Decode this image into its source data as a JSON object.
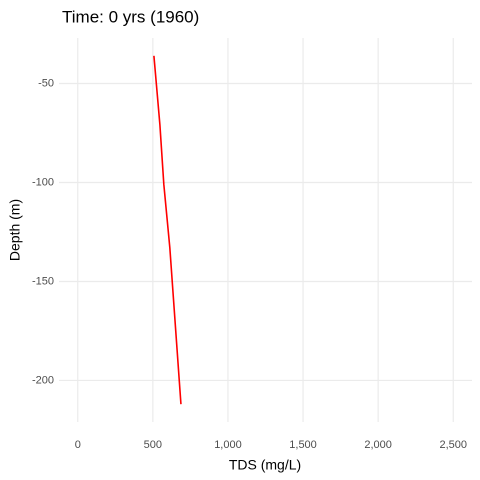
{
  "chart_data": {
    "type": "line",
    "title": "Time: 0 yrs (1960)",
    "x_label": "TDS (mg/L)",
    "y_label": "Depth (m)",
    "x": [
      507,
      547,
      573,
      613,
      687
    ],
    "values": [
      -36,
      -71,
      -101,
      -133,
      -212
    ],
    "color": "#ff0000",
    "xlim": [
      -125,
      2625
    ],
    "ylim": [
      -221,
      -27
    ],
    "xticks": [
      0,
      500,
      {
        "value": 1000,
        "label": "1,000"
      },
      {
        "value": 1500,
        "label": "1,500"
      },
      {
        "value": 2000,
        "label": "2,000"
      },
      {
        "value": 2500,
        "label": "2,500"
      }
    ],
    "yticks": [
      -200,
      -150,
      -100,
      -50
    ],
    "grid": true
  }
}
